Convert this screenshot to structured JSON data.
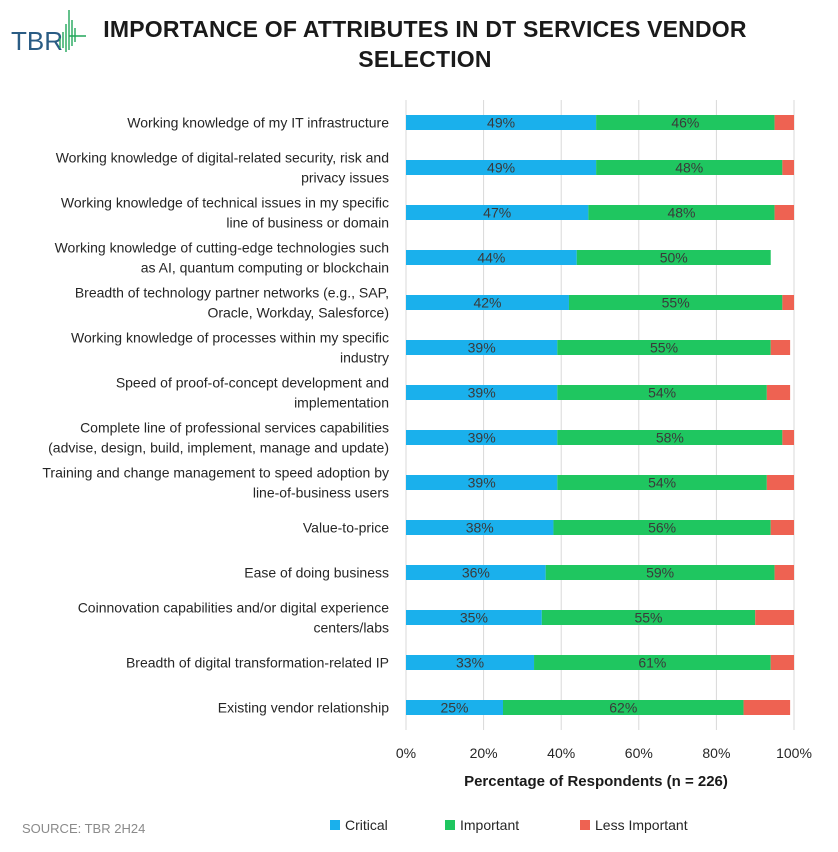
{
  "brand": {
    "name": "TBR",
    "color": "#2a5c84",
    "accent": "#22a65a"
  },
  "title": "IMPORTANCE OF ATTRIBUTES IN DT SERVICES VENDOR SELECTION",
  "source": "SOURCE: TBR 2H24",
  "colors": {
    "critical": "#1ab0ec",
    "important": "#1fc660",
    "less": "#ee6252",
    "grid": "#d9d9d9",
    "text": "#262626",
    "label_text": "#3a3a3a"
  },
  "chart_data": {
    "type": "bar",
    "orientation": "horizontal",
    "stacked": true,
    "title": "IMPORTANCE OF ATTRIBUTES IN DT SERVICES VENDOR SELECTION",
    "xlabel": "Percentage of Respondents (n = 226)",
    "ylabel": "",
    "xlim": [
      0,
      100
    ],
    "xticks": [
      "0%",
      "20%",
      "40%",
      "60%",
      "80%",
      "100%"
    ],
    "legend": {
      "position": "bottom"
    },
    "categories": [
      [
        "Working knowledge of my IT infrastructure"
      ],
      [
        "Working knowledge of digital-related security, risk and",
        "privacy issues"
      ],
      [
        "Working knowledge of technical issues in my specific",
        "line of business or domain"
      ],
      [
        "Working knowledge of cutting-edge technologies such",
        "as AI, quantum computing or blockchain"
      ],
      [
        "Breadth of technology partner networks (e.g., SAP,",
        "Oracle, Workday, Salesforce)"
      ],
      [
        "Working knowledge of processes within my specific",
        "industry"
      ],
      [
        "Speed of proof-of-concept development and",
        "implementation"
      ],
      [
        "Complete line of professional services capabilities",
        "(advise, design, build, implement, manage and update)"
      ],
      [
        "Training and change management to speed adoption by",
        "line-of-business users"
      ],
      [
        "Value-to-price"
      ],
      [
        "Ease of doing business"
      ],
      [
        "Coinnovation capabilities and/or digital experience",
        "centers/labs"
      ],
      [
        "Breadth of digital transformation-related IP"
      ],
      [
        "Existing vendor relationship"
      ]
    ],
    "series": [
      {
        "name": "Critical",
        "key": "critical",
        "values": [
          49,
          49,
          47,
          44,
          42,
          39,
          39,
          39,
          39,
          38,
          36,
          35,
          33,
          25
        ]
      },
      {
        "name": "Important",
        "key": "important",
        "values": [
          46,
          48,
          48,
          50,
          55,
          55,
          54,
          58,
          54,
          56,
          59,
          55,
          61,
          62
        ]
      },
      {
        "name": "Less Important",
        "key": "less",
        "values": [
          5,
          3,
          5,
          0,
          3,
          5,
          6,
          3,
          7,
          6,
          5,
          10,
          6,
          12
        ]
      }
    ],
    "data_labels": {
      "critical": [
        "49%",
        "49%",
        "47%",
        "44%",
        "42%",
        "39%",
        "39%",
        "39%",
        "39%",
        "38%",
        "36%",
        "35%",
        "33%",
        "25%"
      ],
      "important": [
        "46%",
        "48%",
        "48%",
        "50%",
        "55%",
        "55%",
        "54%",
        "58%",
        "54%",
        "56%",
        "59%",
        "55%",
        "61%",
        "62%"
      ]
    }
  }
}
